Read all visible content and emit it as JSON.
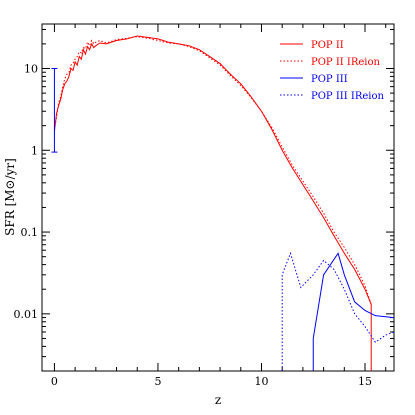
{
  "chart_data": {
    "type": "line",
    "xlabel": "z",
    "ylabel": "SFR [M⊙/yr]",
    "xlim": [
      -0.6,
      16.4
    ],
    "ylim": [
      0.002,
      35
    ],
    "yscale": "log",
    "x_ticks": [
      0,
      5,
      10,
      15
    ],
    "x_tick_labels": [
      "0",
      "5",
      "10",
      "15"
    ],
    "y_ticks": [
      0.01,
      0.1,
      1,
      10
    ],
    "y_tick_labels": [
      "0.01",
      "0.1",
      "1",
      "10"
    ],
    "legend_position": "top-right",
    "grid": false,
    "series": [
      {
        "name": "POP II",
        "color": "#ff0000",
        "style": "solid",
        "points": [
          [
            0.0,
            1.7
          ],
          [
            0.1,
            2.8
          ],
          [
            0.2,
            3.5
          ],
          [
            0.3,
            4.2
          ],
          [
            0.4,
            5.5
          ],
          [
            0.5,
            6.5
          ],
          [
            0.6,
            7.0
          ],
          [
            0.7,
            8.0
          ],
          [
            0.8,
            10.0
          ],
          [
            0.9,
            9.5
          ],
          [
            1.0,
            12.0
          ],
          [
            1.1,
            11.0
          ],
          [
            1.2,
            14.0
          ],
          [
            1.3,
            13.0
          ],
          [
            1.4,
            17.0
          ],
          [
            1.5,
            15.0
          ],
          [
            1.6,
            18.5
          ],
          [
            1.7,
            17.0
          ],
          [
            1.8,
            20.0
          ],
          [
            1.9,
            18.0
          ],
          [
            2.0,
            19.0
          ],
          [
            2.2,
            20.5
          ],
          [
            2.5,
            20.0
          ],
          [
            3.0,
            22.0
          ],
          [
            3.5,
            23.0
          ],
          [
            4.0,
            25.0
          ],
          [
            4.5,
            24.0
          ],
          [
            5.0,
            23.0
          ],
          [
            5.5,
            21.0
          ],
          [
            6.0,
            20.0
          ],
          [
            6.5,
            19.0
          ],
          [
            7.0,
            17.0
          ],
          [
            7.5,
            14.0
          ],
          [
            8.0,
            11.5
          ],
          [
            8.5,
            8.5
          ],
          [
            9.0,
            6.5
          ],
          [
            9.5,
            4.5
          ],
          [
            10.0,
            3.0
          ],
          [
            10.5,
            1.8
          ],
          [
            11.0,
            1.0
          ],
          [
            11.5,
            0.6
          ],
          [
            12.0,
            0.38
          ],
          [
            12.5,
            0.24
          ],
          [
            13.0,
            0.15
          ],
          [
            13.5,
            0.09
          ],
          [
            14.0,
            0.055
          ],
          [
            14.5,
            0.035
          ],
          [
            15.0,
            0.02
          ],
          [
            15.3,
            0.013
          ],
          [
            15.3,
            0.002
          ]
        ]
      },
      {
        "name": "POP II IReion",
        "color": "#ff0000",
        "style": "dotted",
        "points": [
          [
            0.0,
            1.8
          ],
          [
            0.1,
            2.5
          ],
          [
            0.2,
            3.8
          ],
          [
            0.3,
            4.5
          ],
          [
            0.4,
            6.0
          ],
          [
            0.5,
            7.5
          ],
          [
            0.6,
            8.5
          ],
          [
            0.7,
            9.0
          ],
          [
            0.8,
            11.0
          ],
          [
            0.9,
            11.5
          ],
          [
            1.0,
            13.0
          ],
          [
            1.1,
            14.0
          ],
          [
            1.2,
            16.0
          ],
          [
            1.3,
            15.5
          ],
          [
            1.4,
            18.0
          ],
          [
            1.5,
            17.5
          ],
          [
            1.6,
            21.0
          ],
          [
            1.7,
            19.0
          ],
          [
            1.8,
            22.0
          ],
          [
            1.9,
            20.0
          ],
          [
            2.0,
            21.0
          ],
          [
            2.2,
            22.0
          ],
          [
            2.5,
            20.5
          ],
          [
            3.0,
            22.5
          ],
          [
            3.5,
            23.5
          ],
          [
            4.0,
            24.5
          ],
          [
            4.5,
            23.5
          ],
          [
            5.0,
            22.0
          ],
          [
            5.5,
            20.5
          ],
          [
            6.0,
            20.0
          ],
          [
            6.5,
            18.5
          ],
          [
            7.0,
            16.5
          ],
          [
            7.5,
            13.5
          ],
          [
            8.0,
            11.0
          ],
          [
            8.5,
            8.2
          ],
          [
            9.0,
            6.2
          ],
          [
            9.5,
            4.4
          ],
          [
            10.0,
            3.0
          ],
          [
            10.5,
            1.9
          ],
          [
            11.0,
            1.1
          ],
          [
            11.5,
            0.65
          ],
          [
            12.0,
            0.42
          ],
          [
            12.5,
            0.27
          ],
          [
            13.0,
            0.17
          ],
          [
            13.5,
            0.1
          ],
          [
            14.0,
            0.065
          ],
          [
            14.5,
            0.04
          ],
          [
            15.0,
            0.022
          ],
          [
            15.3,
            0.013
          ]
        ]
      },
      {
        "name": "POP III",
        "color": "#0000ff",
        "style": "solid",
        "points": [
          [
            12.5,
            0.002
          ],
          [
            12.5,
            0.005
          ],
          [
            13.0,
            0.03
          ],
          [
            13.7,
            0.055
          ],
          [
            14.0,
            0.03
          ],
          [
            14.5,
            0.014
          ],
          [
            15.0,
            0.011
          ],
          [
            15.5,
            0.0095
          ],
          [
            16.4,
            0.009
          ]
        ]
      },
      {
        "name": "POP III IReion",
        "color": "#0000ff",
        "style": "dotted",
        "points": [
          [
            11.0,
            0.002
          ],
          [
            11.0,
            0.03
          ],
          [
            11.4,
            0.055
          ],
          [
            11.9,
            0.021
          ],
          [
            12.5,
            0.03
          ],
          [
            13.0,
            0.045
          ],
          [
            13.5,
            0.035
          ],
          [
            14.0,
            0.02
          ],
          [
            14.5,
            0.01
          ],
          [
            15.0,
            0.007
          ],
          [
            15.5,
            0.0045
          ],
          [
            16.0,
            0.0055
          ],
          [
            16.4,
            0.006
          ]
        ]
      }
    ],
    "error_bar": {
      "x": 0.0,
      "y_low": 0.95,
      "y_high": 10,
      "color": "#0000ff"
    }
  }
}
